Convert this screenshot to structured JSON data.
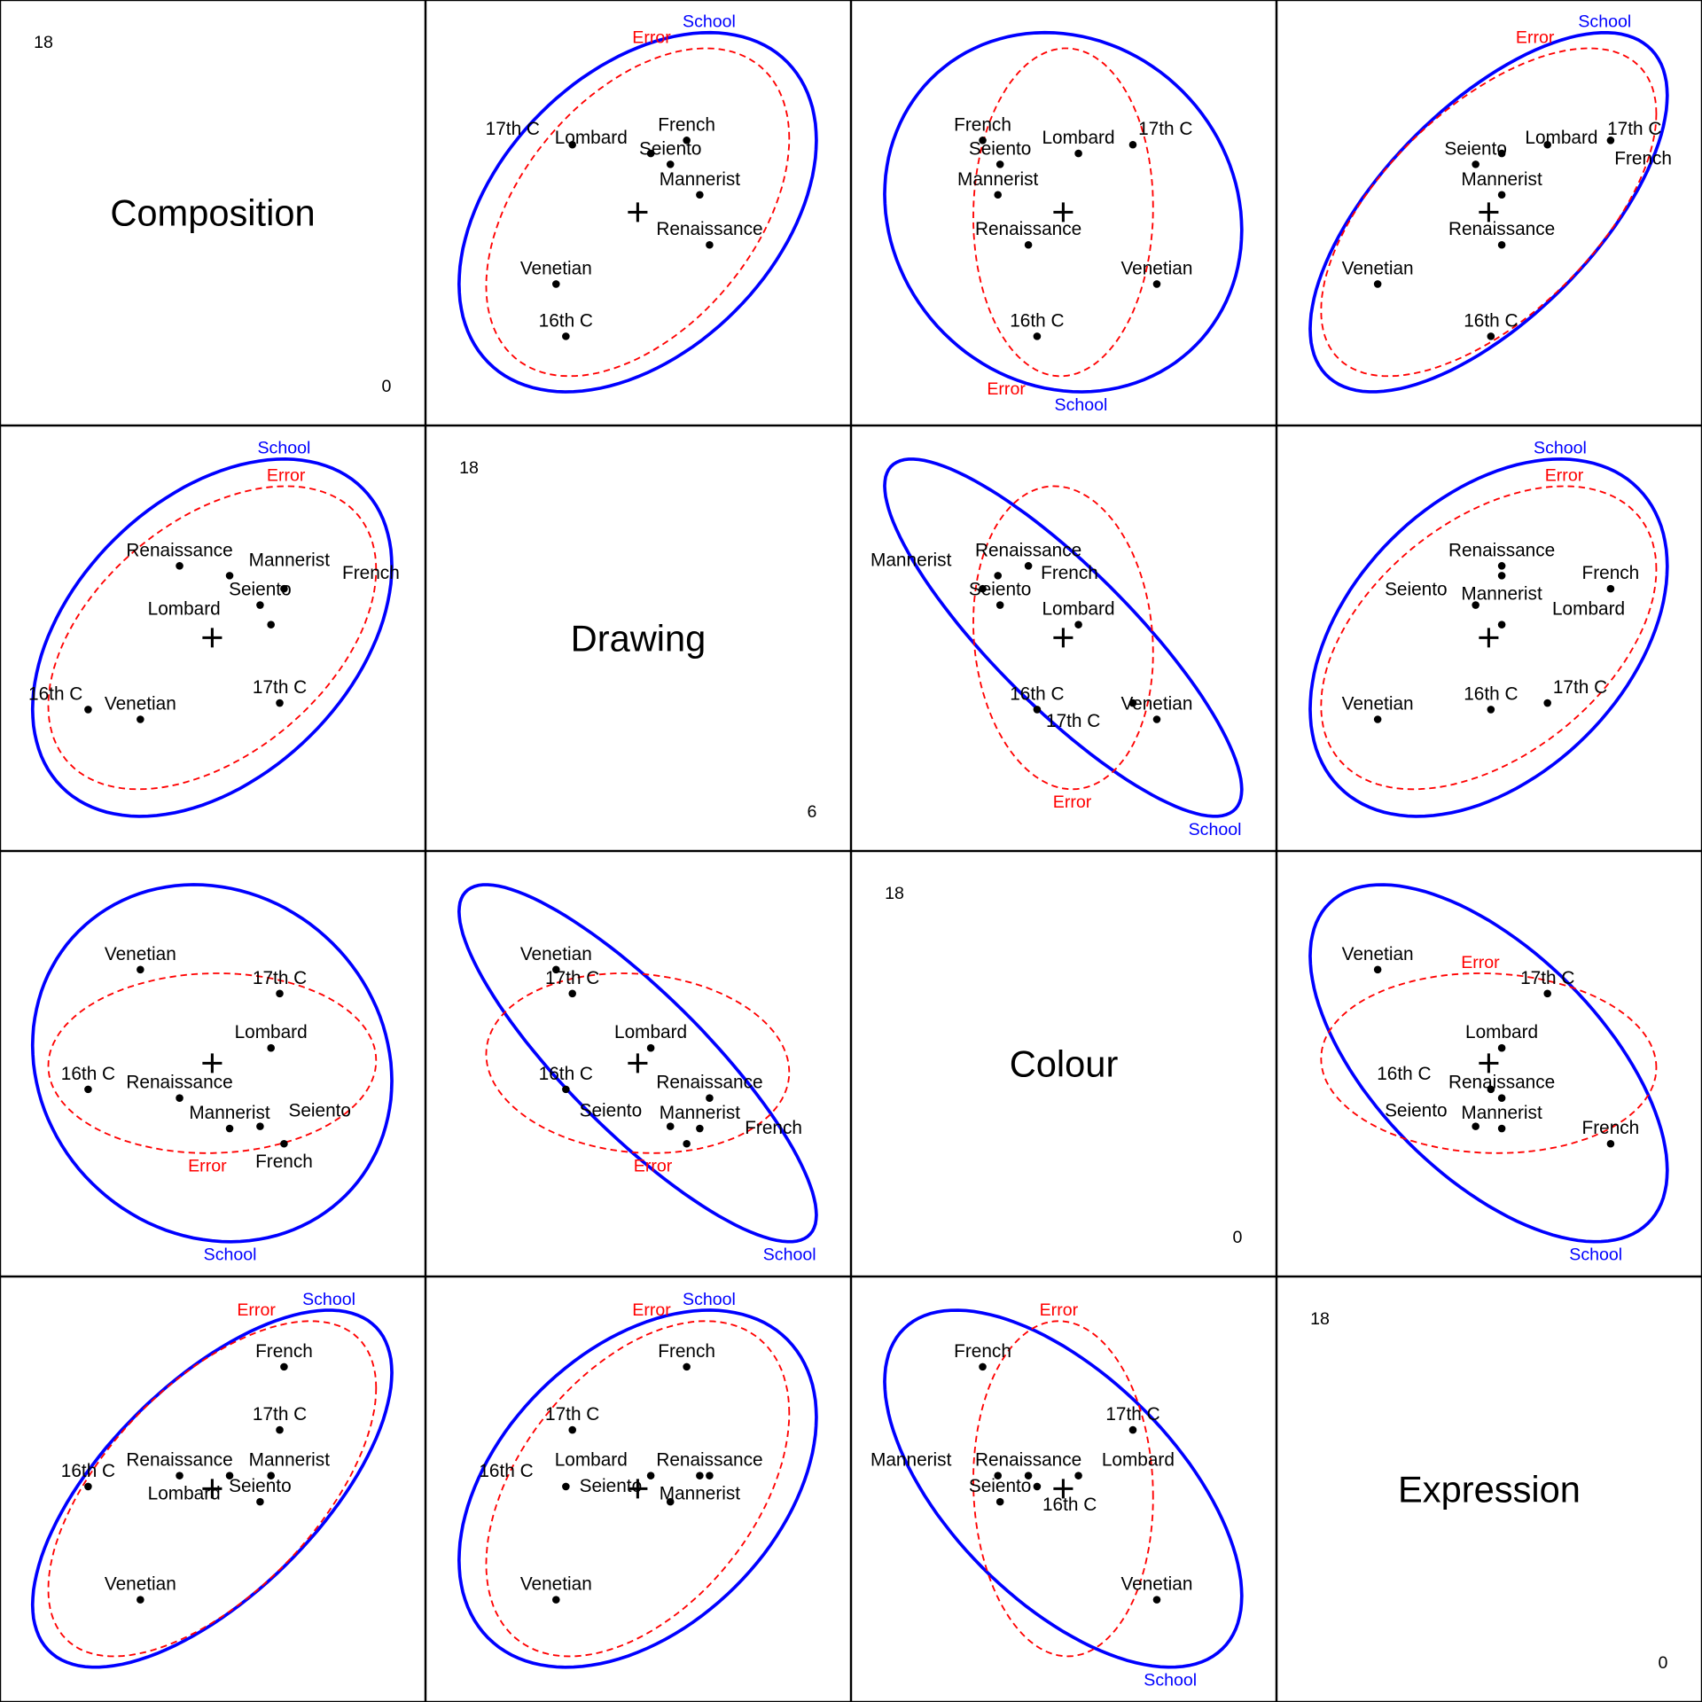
{
  "chart_data": {
    "type": "scatter",
    "title": "",
    "variables": [
      "Composition",
      "Drawing",
      "Colour",
      "Expression"
    ],
    "ranges": [
      [
        0,
        18
      ],
      [
        6,
        18
      ],
      [
        0,
        18
      ],
      [
        0,
        18
      ]
    ],
    "range_labels": [
      [
        "0",
        "18"
      ],
      [
        "6",
        "18"
      ],
      [
        "0",
        "18"
      ],
      [
        "0",
        "18"
      ]
    ],
    "groups": [
      "Renaissance",
      "Mannerist",
      "Seiento",
      "Venetian",
      "Lombard",
      "16th C",
      "17th C",
      "French"
    ],
    "group_means": [
      [
        7.5,
        14.2,
        7.4,
        9.6
      ],
      [
        9.8,
        13.9,
        6.0,
        9.6
      ],
      [
        11.2,
        13.0,
        6.1,
        8.4
      ],
      [
        5.7,
        9.5,
        13.3,
        3.9
      ],
      [
        11.7,
        12.4,
        9.7,
        9.6
      ],
      [
        3.3,
        9.8,
        7.8,
        9.1
      ],
      [
        12.1,
        10.0,
        12.2,
        11.7
      ],
      [
        12.3,
        13.5,
        5.3,
        14.6
      ]
    ],
    "grand_mean": [
      9.0,
      12.0,
      9.0,
      9.0
    ],
    "ellipses": [
      {
        "name": "School",
        "color": "#0000FF",
        "style": "solid",
        "sd": [
          8.25,
          5.47,
          8.2,
          8.2
        ],
        "corr": [
          [
            1,
            0.4,
            -0.1,
            0.65
          ],
          [
            0.4,
            1,
            -0.85,
            0.4
          ],
          [
            -0.1,
            -0.85,
            1,
            -0.6
          ],
          [
            0.65,
            0.4,
            -0.6,
            1
          ]
        ]
      },
      {
        "name": "Error",
        "color": "#FF0000",
        "style": "dashed",
        "sd": [
          7.53,
          4.64,
          4.13,
          7.7
        ],
        "corr": [
          [
            1,
            0.45,
            0.03,
            0.6
          ],
          [
            0.45,
            1,
            -0.1,
            0.45
          ],
          [
            0.03,
            -0.1,
            1,
            -0.05
          ],
          [
            0.6,
            0.45,
            -0.05,
            1
          ]
        ]
      }
    ],
    "label_sides": [
      [
        null,
        [
          "top",
          "top"
        ],
        [
          "bottom",
          "bottom"
        ],
        [
          "top",
          "top"
        ]
      ],
      [
        [
          "top",
          "top"
        ],
        null,
        [
          "bottom",
          "bottom"
        ],
        [
          "top",
          "top"
        ]
      ],
      [
        [
          "bottom",
          "bottom"
        ],
        [
          "bottom",
          "bottom"
        ],
        null,
        [
          "bottom",
          "top"
        ]
      ],
      [
        [
          "top",
          "top"
        ],
        [
          "top",
          "top"
        ],
        [
          "bottom",
          "top"
        ],
        null
      ]
    ]
  }
}
